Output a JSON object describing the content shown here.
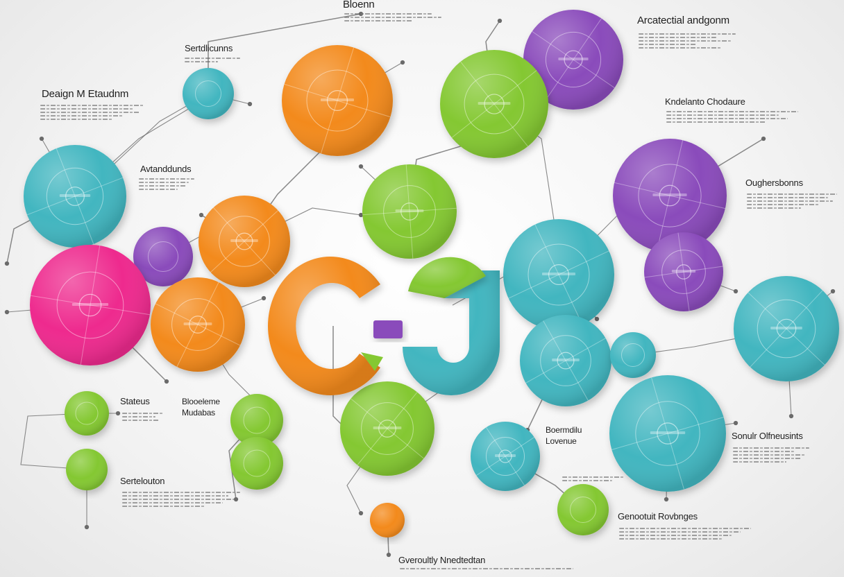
{
  "palette": {
    "orange": "#f38a1e",
    "green": "#84c832",
    "teal": "#43b6c0",
    "purple": "#8a4bbb",
    "magenta": "#ee2a8e",
    "line": "#6b6b6b"
  },
  "labels": {
    "top_center": "Bloenn",
    "top_right": "Arcatectial andgonm",
    "top_left": "Sertdlicunns",
    "left_title": "Deaign M Etaudnm",
    "right_mid": "Kndelanto Chodaure",
    "left_mid": "Avtanddunds",
    "right_side": "Oughersbonns",
    "bottom_left_a": "Stateus",
    "bottom_left_b": "Blooeleme Mudabas",
    "bottom_left_c": "Sertelouton",
    "bottom_mid_right": "Boermdilu Lovenue",
    "bottom_right_a": "Sonulr Olfneusints",
    "bottom_right_b": "Genootuit Rovbnges",
    "bottom_center": "Gveroultly Nnedtedtan"
  }
}
